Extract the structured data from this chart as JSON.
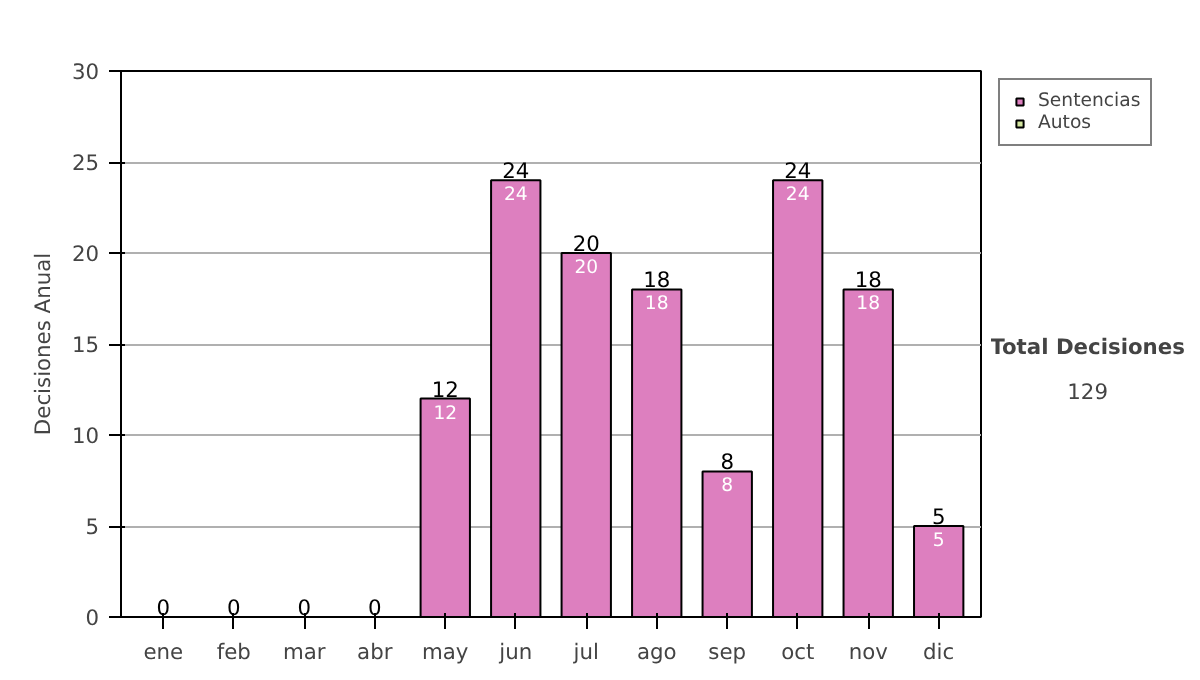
{
  "chart_data": {
    "type": "bar",
    "stacked": true,
    "ylabel": "Decisiones Anual",
    "categories": [
      "ene",
      "feb",
      "mar",
      "abr",
      "may",
      "jun",
      "jul",
      "ago",
      "sep",
      "oct",
      "nov",
      "dic"
    ],
    "series": [
      {
        "name": "Sentencias",
        "color": "#dd7fbf",
        "values": [
          0,
          0,
          0,
          0,
          12,
          24,
          20,
          18,
          8,
          24,
          18,
          5
        ],
        "value_labels": [
          null,
          null,
          null,
          null,
          "12",
          "24",
          "20",
          "18",
          "8",
          "24",
          "18",
          "5"
        ]
      },
      {
        "name": "Autos",
        "color": "#d4e6a0",
        "values": [
          0,
          0,
          0,
          0,
          0,
          0,
          0,
          0,
          0,
          0,
          0,
          0
        ]
      }
    ],
    "totals": [
      "0",
      "0",
      "0",
      "0",
      "12",
      "24",
      "20",
      "18",
      "8",
      "24",
      "18",
      "5"
    ],
    "ylim": [
      0,
      30
    ],
    "yticks": [
      0,
      5,
      10,
      15,
      20,
      25,
      30
    ],
    "grid": "y",
    "legend": "right",
    "annotations": [
      "Total Decisiones",
      "129"
    ]
  }
}
